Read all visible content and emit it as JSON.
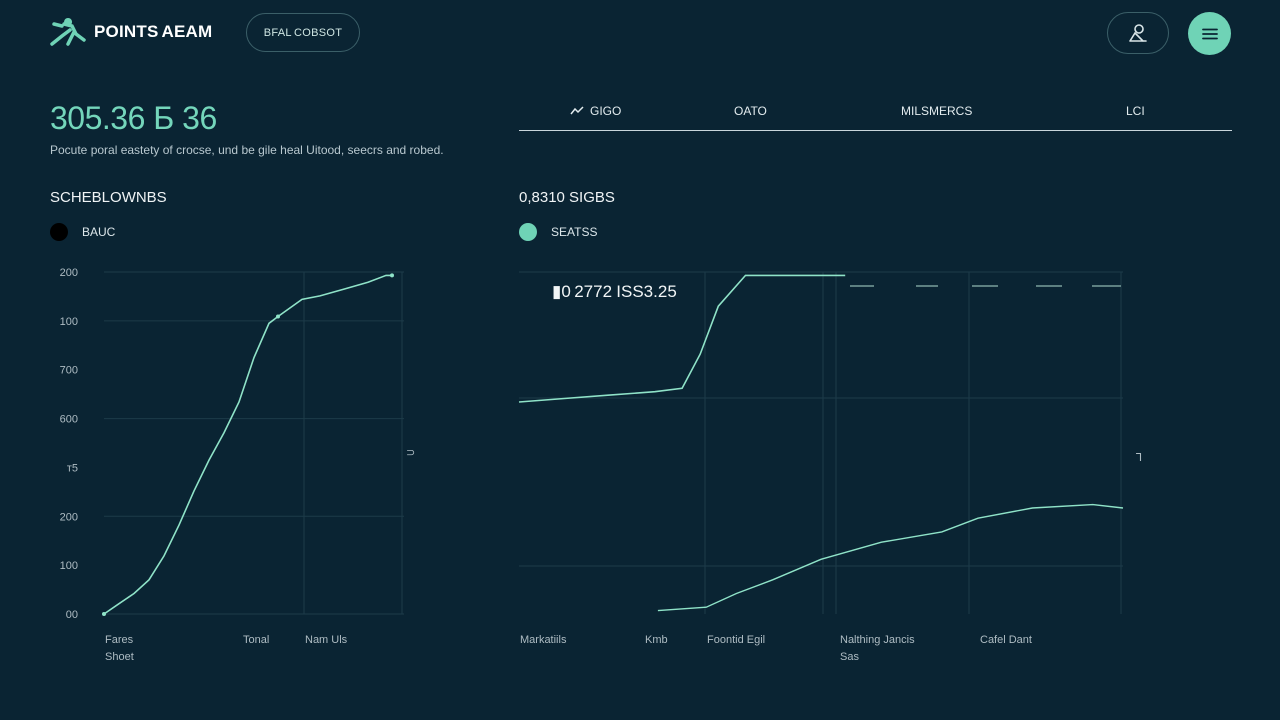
{
  "header": {
    "logo_text": "POINTS AEAM",
    "pill_button_label": "BFAL COBSOT",
    "profile_icon": "person-icon",
    "menu_icon": "hamburger-icon",
    "accent": "#6fd3b6"
  },
  "summary": {
    "headline_value": "305.36 Б 36",
    "description": "Pocute poral eastety of crocse, und be gile heal Uitood, seecrs and robed."
  },
  "tabs": [
    {
      "label": "GIGO",
      "icon": "trend-icon"
    },
    {
      "label": "OATO"
    },
    {
      "label": "MILSMERCS"
    },
    {
      "label": "LCI"
    }
  ],
  "left_panel": {
    "title": "SCHEBLOWNBS",
    "legend_label": "BAUC",
    "legend_color": "#000000"
  },
  "right_panel": {
    "title": "0,8310 SIGBS",
    "legend_label": "SEATSS",
    "legend_color": "#6fd3b6",
    "annotation": "▮0 2772 ISS3.25"
  },
  "chart_data": [
    {
      "type": "line",
      "title": "SCHEBLOWNBS",
      "y_tick_labels": [
        "200",
        "100",
        "700",
        "600",
        "т5",
        "200",
        "100",
        "00"
      ],
      "x_labels": [
        [
          "Fares",
          "Shoet"
        ],
        [
          "Tonal"
        ],
        [
          "Nam Uls"
        ]
      ],
      "series": [
        {
          "name": "BAUC",
          "x": [
            0,
            0.05,
            0.1,
            0.15,
            0.2,
            0.25,
            0.3,
            0.35,
            0.4,
            0.45,
            0.5,
            0.55,
            0.58,
            0.66,
            0.72,
            0.8,
            0.88,
            0.94,
            0.96
          ],
          "y": [
            0.0,
            0.03,
            0.06,
            0.1,
            0.17,
            0.26,
            0.36,
            0.45,
            0.53,
            0.62,
            0.75,
            0.85,
            0.87,
            0.92,
            0.93,
            0.95,
            0.97,
            0.99,
            0.99
          ]
        }
      ]
    },
    {
      "type": "line",
      "title": "0,8310 SIGBS",
      "x_labels": [
        [
          "Markatiils"
        ],
        [
          "Kmb"
        ],
        [
          "Foontid Egil"
        ],
        [
          "Nalthing Jancis",
          "Sas"
        ],
        [
          "Cafel Dant"
        ]
      ],
      "series": [
        {
          "name": "SEATSS",
          "x": [
            0,
            0.1,
            0.2,
            0.3,
            0.36,
            0.4,
            0.44,
            0.5,
            0.58,
            0.64,
            0.72
          ],
          "y": [
            0.62,
            0.63,
            0.64,
            0.65,
            0.66,
            0.76,
            0.9,
            0.99,
            0.99,
            0.99,
            0.99
          ]
        },
        {
          "x": [
            0.23,
            0.31,
            0.36,
            0.42,
            0.5,
            0.6,
            0.7,
            0.76,
            0.85,
            0.95,
            1.0
          ],
          "y": [
            0.01,
            0.02,
            0.06,
            0.1,
            0.16,
            0.21,
            0.24,
            0.28,
            0.31,
            0.32,
            0.31
          ]
        }
      ]
    }
  ]
}
